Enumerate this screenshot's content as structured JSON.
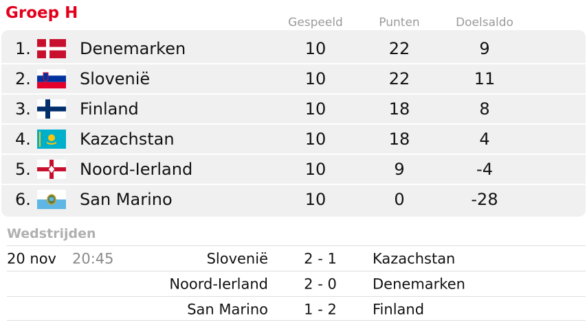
{
  "header": {
    "title": "Groep H",
    "columns": [
      "Gespeeld",
      "Punten",
      "Doelsaldo"
    ]
  },
  "table": {
    "rows": [
      [
        "1.",
        "Denemarken",
        10,
        22,
        9
      ],
      [
        "2.",
        "Slovenië",
        10,
        22,
        11
      ],
      [
        "3.",
        "Finland",
        10,
        18,
        8
      ],
      [
        "4.",
        "Kazachstan",
        10,
        18,
        4
      ],
      [
        "5.",
        "Noord-Ierland",
        10,
        9,
        -4
      ],
      [
        "6.",
        "San Marino",
        10,
        0,
        -28
      ]
    ]
  },
  "matches": {
    "title": "Wedstrijden",
    "rows": [
      [
        "20 nov",
        "20:45",
        "Slovenië",
        "2 - 1",
        "Kazachstan"
      ],
      [
        null,
        null,
        "Noord-Ierland",
        "2 - 0",
        "Denemarken"
      ],
      [
        null,
        null,
        "San Marino",
        "1 - 2",
        "Finland"
      ]
    ]
  }
}
